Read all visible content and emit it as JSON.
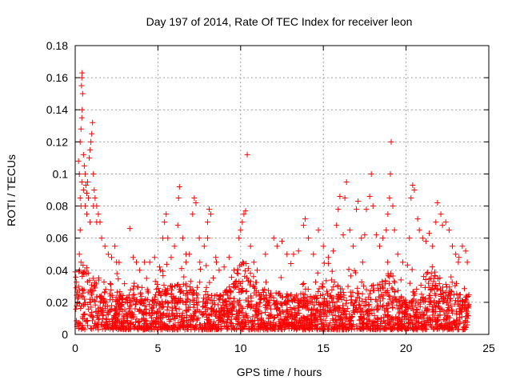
{
  "chart_data": {
    "type": "scatter",
    "title": "Day 197 of 2014, Rate Of TEC Index for receiver leon",
    "xlabel": "GPS time / hours",
    "ylabel": "ROTI / TECUs",
    "xlim": [
      0,
      25
    ],
    "ylim": [
      0,
      0.18
    ],
    "x_ticks": [
      0,
      5,
      10,
      15,
      20,
      25
    ],
    "x_tick_labels": [
      "0",
      "5",
      "10",
      "15",
      "20",
      "25"
    ],
    "y_ticks": [
      0,
      0.02,
      0.04,
      0.06,
      0.08,
      0.1,
      0.12,
      0.14,
      0.16,
      0.18
    ],
    "y_tick_labels": [
      "0",
      "0.02",
      "0.04",
      "0.06",
      "0.08",
      "0.1",
      "0.12",
      "0.14",
      "0.16",
      "0.18"
    ],
    "grid": true,
    "marker": "+",
    "marker_color": "#ff0000",
    "series": [
      {
        "name": "ROTI",
        "points": [
          [
            0.1,
            0.005
          ],
          [
            0.15,
            0.02
          ],
          [
            0.2,
            0.03
          ],
          [
            0.25,
            0.05
          ],
          [
            0.3,
            0.065
          ],
          [
            0.35,
            0.08
          ],
          [
            0.4,
            0.095
          ],
          [
            0.2,
            0.108
          ],
          [
            0.3,
            0.12
          ],
          [
            0.35,
            0.128
          ],
          [
            0.4,
            0.135
          ],
          [
            0.42,
            0.14
          ],
          [
            0.45,
            0.15
          ],
          [
            0.38,
            0.155
          ],
          [
            0.4,
            0.16
          ],
          [
            0.42,
            0.163
          ],
          [
            0.5,
            0.112
          ],
          [
            0.55,
            0.105
          ],
          [
            0.6,
            0.1
          ],
          [
            0.65,
            0.093
          ],
          [
            0.7,
            0.088
          ],
          [
            0.75,
            0.095
          ],
          [
            0.8,
            0.085
          ],
          [
            0.85,
            0.11
          ],
          [
            0.9,
            0.115
          ],
          [
            0.95,
            0.12
          ],
          [
            1.0,
            0.125
          ],
          [
            1.05,
            0.132
          ],
          [
            1.1,
            0.1
          ],
          [
            1.15,
            0.09
          ],
          [
            1.2,
            0.085
          ],
          [
            1.3,
            0.08
          ],
          [
            1.4,
            0.075
          ],
          [
            1.5,
            0.07
          ],
          [
            1.6,
            0.06
          ],
          [
            1.1,
            0.08
          ],
          [
            1.3,
            0.07
          ],
          [
            0.6,
            0.08
          ],
          [
            0.7,
            0.075
          ],
          [
            0.9,
            0.07
          ],
          [
            0.5,
            0.09
          ],
          [
            0.3,
            0.085
          ],
          [
            0.25,
            0.1
          ],
          [
            1.8,
            0.055
          ],
          [
            2.0,
            0.05
          ],
          [
            2.2,
            0.048
          ],
          [
            2.4,
            0.055
          ],
          [
            2.5,
            0.045
          ],
          [
            3.3,
            0.066
          ],
          [
            3.5,
            0.048
          ],
          [
            3.7,
            0.045
          ],
          [
            3.9,
            0.04
          ],
          [
            4.8,
            0.048
          ],
          [
            5.1,
            0.042
          ],
          [
            5.3,
            0.06
          ],
          [
            5.4,
            0.07
          ],
          [
            5.5,
            0.075
          ],
          [
            5.6,
            0.06
          ],
          [
            5.8,
            0.048
          ],
          [
            6.0,
            0.055
          ],
          [
            6.2,
            0.068
          ],
          [
            6.25,
            0.085
          ],
          [
            6.3,
            0.092
          ],
          [
            6.5,
            0.06
          ],
          [
            6.7,
            0.05
          ],
          [
            6.9,
            0.05
          ],
          [
            7.1,
            0.075
          ],
          [
            7.2,
            0.085
          ],
          [
            7.3,
            0.082
          ],
          [
            7.5,
            0.06
          ],
          [
            7.8,
            0.055
          ],
          [
            8.0,
            0.07
          ],
          [
            8.1,
            0.078
          ],
          [
            8.2,
            0.075
          ],
          [
            8.0,
            0.06
          ],
          [
            8.5,
            0.048
          ],
          [
            8.7,
            0.04
          ],
          [
            9.0,
            0.042
          ],
          [
            9.3,
            0.048
          ],
          [
            9.6,
            0.04
          ],
          [
            9.9,
            0.06
          ],
          [
            10.0,
            0.065
          ],
          [
            10.1,
            0.07
          ],
          [
            10.2,
            0.075
          ],
          [
            10.3,
            0.077
          ],
          [
            10.4,
            0.112
          ],
          [
            10.6,
            0.055
          ],
          [
            10.8,
            0.045
          ],
          [
            11.0,
            0.04
          ],
          [
            11.5,
            0.05
          ],
          [
            12.0,
            0.06
          ],
          [
            12.2,
            0.055
          ],
          [
            12.5,
            0.058
          ],
          [
            12.8,
            0.05
          ],
          [
            13.2,
            0.05
          ],
          [
            13.5,
            0.052
          ],
          [
            13.8,
            0.068
          ],
          [
            13.9,
            0.072
          ],
          [
            14.1,
            0.06
          ],
          [
            14.4,
            0.05
          ],
          [
            14.7,
            0.065
          ],
          [
            15.0,
            0.055
          ],
          [
            15.3,
            0.048
          ],
          [
            15.6,
            0.052
          ],
          [
            15.8,
            0.068
          ],
          [
            15.9,
            0.078
          ],
          [
            16.0,
            0.086
          ],
          [
            16.2,
            0.062
          ],
          [
            16.3,
            0.085
          ],
          [
            16.4,
            0.095
          ],
          [
            16.6,
            0.065
          ],
          [
            16.8,
            0.055
          ],
          [
            17.0,
            0.078
          ],
          [
            17.1,
            0.083
          ],
          [
            17.3,
            0.06
          ],
          [
            17.5,
            0.062
          ],
          [
            17.6,
            0.078
          ],
          [
            17.8,
            0.086
          ],
          [
            17.9,
            0.1
          ],
          [
            18.0,
            0.08
          ],
          [
            18.2,
            0.062
          ],
          [
            18.4,
            0.055
          ],
          [
            18.6,
            0.06
          ],
          [
            18.8,
            0.065
          ],
          [
            18.9,
            0.075
          ],
          [
            19.0,
            0.085
          ],
          [
            19.05,
            0.1
          ],
          [
            19.1,
            0.12
          ],
          [
            19.2,
            0.08
          ],
          [
            19.3,
            0.065
          ],
          [
            19.5,
            0.05
          ],
          [
            19.8,
            0.045
          ],
          [
            20.2,
            0.06
          ],
          [
            20.3,
            0.085
          ],
          [
            20.4,
            0.093
          ],
          [
            20.5,
            0.09
          ],
          [
            20.7,
            0.072
          ],
          [
            20.8,
            0.065
          ],
          [
            21.0,
            0.06
          ],
          [
            21.2,
            0.058
          ],
          [
            21.4,
            0.063
          ],
          [
            21.6,
            0.055
          ],
          [
            21.8,
            0.07
          ],
          [
            21.9,
            0.082
          ],
          [
            22.1,
            0.075
          ],
          [
            22.2,
            0.068
          ],
          [
            22.4,
            0.07
          ],
          [
            22.6,
            0.065
          ],
          [
            22.8,
            0.055
          ],
          [
            23.0,
            0.05
          ],
          [
            23.2,
            0.048
          ],
          [
            23.4,
            0.055
          ],
          [
            23.6,
            0.052
          ],
          [
            23.7,
            0.045
          ]
        ],
        "dense_band": {
          "x_range": [
            0,
            23.8
          ],
          "baseline_range": [
            0.003,
            0.045
          ],
          "typical_range": [
            0.008,
            0.02
          ],
          "note": "thousands of overlapping + markers between 0 and about 0.045"
        }
      }
    ]
  }
}
